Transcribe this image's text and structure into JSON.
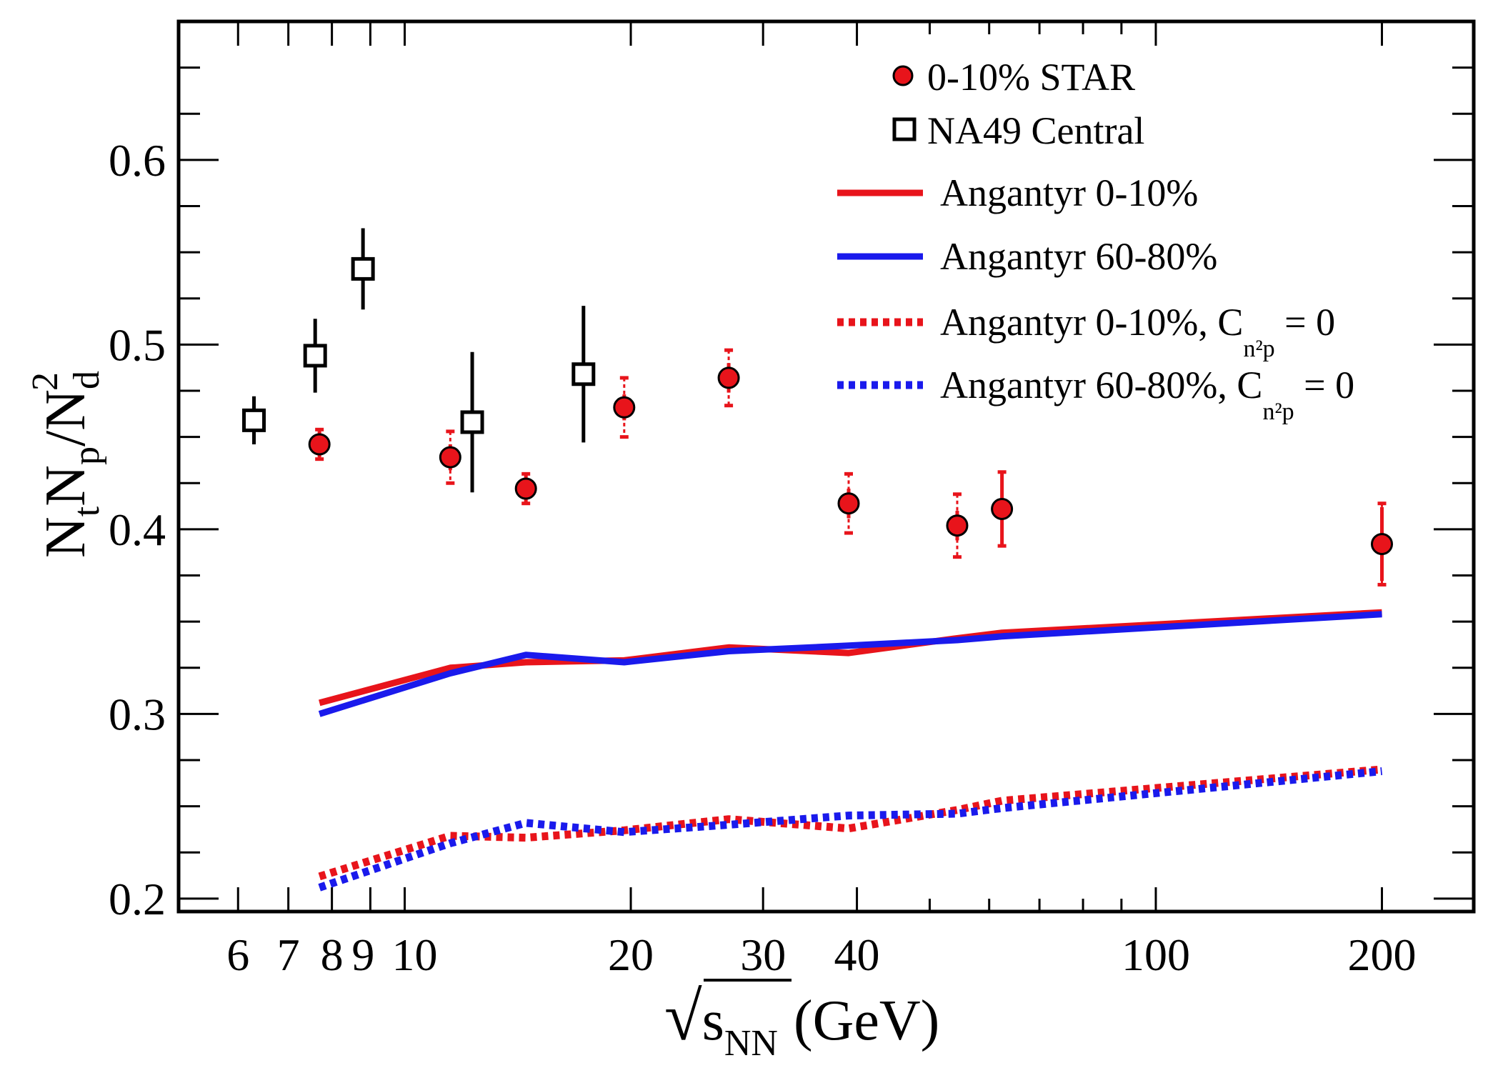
{
  "chart_data": {
    "type": "scatter",
    "xlabel": "√s_NN (GeV)",
    "xlabel_parts": {
      "radical": "√",
      "s": "s",
      "sub": "NN",
      "unit": "(GeV)"
    },
    "ylabel": "N_t N_p / N_d^2",
    "ylabel_parts": {
      "n1": "N",
      "s1": "t",
      "n2": "N",
      "s2": "p",
      "slash": "/N",
      "s3": "d",
      "sup": "2"
    },
    "x_scale": "log",
    "xlim": [
      5.0,
      265
    ],
    "ylim": [
      0.193,
      0.675
    ],
    "x_ticks": [
      {
        "value": 6,
        "label": "6"
      },
      {
        "value": 7,
        "label": "7"
      },
      {
        "value": 8,
        "label": "8"
      },
      {
        "value": 9,
        "label": "9"
      },
      {
        "value": 10,
        "label": "10"
      },
      {
        "value": 20,
        "label": "20"
      },
      {
        "value": 30,
        "label": "30"
      },
      {
        "value": 40,
        "label": "40"
      },
      {
        "value": 100,
        "label": "100"
      },
      {
        "value": 200,
        "label": "200"
      }
    ],
    "y_ticks": [
      {
        "value": 0.2,
        "label": "0.2"
      },
      {
        "value": 0.3,
        "label": "0.3"
      },
      {
        "value": 0.4,
        "label": "0.4"
      },
      {
        "value": 0.5,
        "label": "0.5"
      },
      {
        "value": 0.6,
        "label": "0.6"
      }
    ],
    "grid": false,
    "legend_position": "top-right",
    "legend": [
      {
        "key": "star",
        "marker": "circle",
        "text": "0-10% STAR"
      },
      {
        "key": "na49",
        "marker": "square",
        "text": "NA49 Central"
      },
      {
        "key": "ang010",
        "marker": "solid-red",
        "text": "Angantyr  0-10%"
      },
      {
        "key": "ang6080",
        "marker": "solid-blue",
        "text": "Angantyr  60-80%"
      },
      {
        "key": "ang010c",
        "marker": "dotted-red",
        "text": "Angantyr  0-10%, C",
        "sub": "n²p",
        "tail": " = 0"
      },
      {
        "key": "ang6080c",
        "marker": "dotted-blue",
        "text": "Angantyr  60-80%, C",
        "sub": "n²p",
        "tail": " = 0"
      }
    ],
    "colors": {
      "red": "#e8141b",
      "blue": "#1a1aec",
      "black": "#000000"
    },
    "series": [
      {
        "name": "0-10% STAR",
        "kind": "points",
        "marker": "circle",
        "x": [
          7.7,
          11.5,
          14.5,
          19.6,
          27,
          39,
          54.4,
          62.4,
          200
        ],
        "y": [
          0.446,
          0.439,
          0.422,
          0.466,
          0.482,
          0.414,
          0.402,
          0.411,
          0.392
        ],
        "stat_err": [
          0.007,
          0.007,
          0.008,
          0.007,
          0.008,
          0.008,
          0.008,
          0.02,
          0.02
        ],
        "sys_err": [
          0.008,
          0.014,
          0.008,
          0.016,
          0.015,
          0.016,
          0.017,
          0.02,
          0.022
        ]
      },
      {
        "name": "NA49 Central",
        "kind": "points",
        "marker": "square",
        "x": [
          6.3,
          7.6,
          8.8,
          12.3,
          17.3
        ],
        "y": [
          0.459,
          0.494,
          0.541,
          0.458,
          0.484
        ],
        "err": [
          0.013,
          0.02,
          0.022,
          0.038,
          0.037
        ]
      },
      {
        "name": "Angantyr  0-10%",
        "kind": "line",
        "style": "solid",
        "color": "#e8141b",
        "x": [
          7.7,
          11.5,
          14.5,
          19.6,
          27,
          39,
          54.4,
          62.4,
          200
        ],
        "y": [
          0.306,
          0.325,
          0.328,
          0.329,
          0.336,
          0.333,
          0.341,
          0.344,
          0.355
        ]
      },
      {
        "name": "Angantyr  60-80%",
        "kind": "line",
        "style": "solid",
        "color": "#1a1aec",
        "x": [
          7.7,
          11.5,
          14.5,
          19.6,
          27,
          39,
          54.4,
          62.4,
          200
        ],
        "y": [
          0.3,
          0.322,
          0.332,
          0.328,
          0.334,
          0.337,
          0.34,
          0.342,
          0.354
        ]
      },
      {
        "name": "Angantyr  0-10%, C_n2p = 0",
        "kind": "line",
        "style": "dotted",
        "color": "#e8141b",
        "x": [
          7.7,
          11.5,
          14.5,
          19.6,
          27,
          39,
          54.4,
          62.4,
          200
        ],
        "y": [
          0.212,
          0.234,
          0.233,
          0.237,
          0.243,
          0.238,
          0.248,
          0.253,
          0.27
        ]
      },
      {
        "name": "Angantyr  60-80%, C_n2p = 0",
        "kind": "line",
        "style": "dotted",
        "color": "#1a1aec",
        "x": [
          7.7,
          11.5,
          14.5,
          19.6,
          27,
          39,
          54.4,
          62.4,
          200
        ],
        "y": [
          0.206,
          0.23,
          0.241,
          0.236,
          0.24,
          0.245,
          0.246,
          0.249,
          0.269
        ]
      }
    ]
  }
}
